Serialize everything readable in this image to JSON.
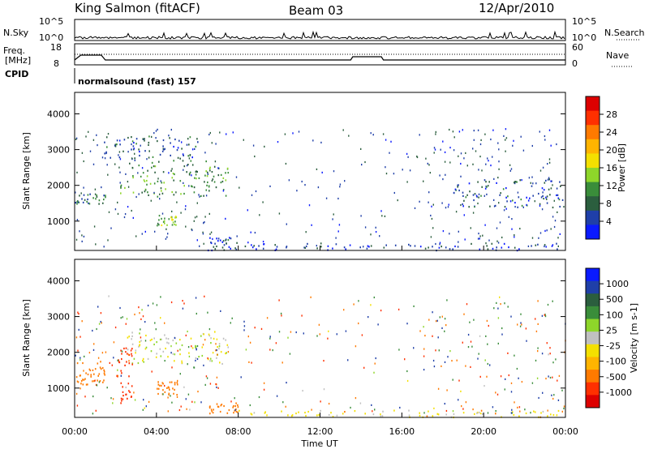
{
  "header": {
    "title": "King Salmon (fitACF)",
    "beam": "Beam 03",
    "date": "12/Apr/2010"
  },
  "strips": {
    "nsky_label": "N.Sky",
    "nsearch_label": "N.Search",
    "noise_ticks": [
      "10^5",
      "10^0"
    ],
    "freq_label": "Freq.",
    "freq_unit": "[MHz]",
    "freq_ticks": [
      "18",
      "8"
    ],
    "nave_label": "Nave",
    "nave_ticks": [
      "60",
      "0"
    ],
    "cpid_label": "CPID",
    "cpid_value": "normalsound (fast) 157"
  },
  "colors": {
    "power": [
      "#0a1aff",
      "#1f3fa8",
      "#2b5e3e",
      "#3a8d3a",
      "#8ed62a",
      "#f4e000",
      "#ffb400",
      "#ff7a00",
      "#ff3000",
      "#dd0000"
    ],
    "velocity": [
      "#0a1aff",
      "#1f3fa8",
      "#2b5e3e",
      "#3a8d3a",
      "#8ed62a",
      "#c0c0c0",
      "#f4e000",
      "#ffb400",
      "#ff7a00",
      "#ff3000",
      "#dd0000"
    ]
  },
  "chart_data": [
    {
      "type": "heatmap",
      "panel": "power",
      "ylabel": "Slant Range [km]",
      "xlabel": "Time UT",
      "xlim": [
        0,
        24
      ],
      "ylim": [
        180,
        4600
      ],
      "x_ticks": [
        "00:00",
        "04:00",
        "08:00",
        "12:00",
        "16:00",
        "20:00",
        "00:00"
      ],
      "y_ticks": [
        1000,
        2000,
        3000,
        4000
      ],
      "colorbar": {
        "label": "Power [dB]",
        "ticks": [
          "28",
          "24",
          "20",
          "16",
          "12",
          "8",
          "4"
        ],
        "range": [
          0,
          30
        ]
      },
      "features": [
        {
          "t": [
            2.2,
            7.5
          ],
          "range_km": [
            1700,
            2700
          ],
          "level_db": 10
        },
        {
          "t": [
            0.0,
            1.5
          ],
          "range_km": [
            1500,
            1800
          ],
          "level_db": 8
        },
        {
          "t": [
            1.4,
            6.0
          ],
          "range_km": [
            2700,
            3400
          ],
          "level_db": 6
        },
        {
          "t": [
            4.0,
            5.0
          ],
          "range_km": [
            900,
            1200
          ],
          "level_db": 12
        },
        {
          "t": [
            6.5,
            8.0
          ],
          "range_km": [
            200,
            600
          ],
          "level_db": 6
        },
        {
          "t": [
            8.0,
            24.0
          ],
          "range_km": [
            200,
            400
          ],
          "level_db": 4
        },
        {
          "t": [
            18.5,
            24.0
          ],
          "range_km": [
            1400,
            2200
          ],
          "level_db": 6
        }
      ]
    },
    {
      "type": "heatmap",
      "panel": "velocity",
      "ylabel": "Slant Range [km]",
      "xlabel": "Time UT",
      "xlim": [
        0,
        24
      ],
      "ylim": [
        180,
        4600
      ],
      "x_ticks": [
        "00:00",
        "04:00",
        "08:00",
        "12:00",
        "16:00",
        "20:00",
        "00:00"
      ],
      "y_ticks": [
        1000,
        2000,
        3000,
        4000
      ],
      "colorbar": {
        "label": "Velocity [m s-1]",
        "ticks": [
          "1000",
          "500",
          "100",
          "25",
          "-25",
          "-100",
          "-500",
          "-1000"
        ]
      },
      "features": [
        {
          "t": [
            2.5,
            7.5
          ],
          "range_km": [
            1700,
            2600
          ],
          "velocity": 0
        },
        {
          "t": [
            0.0,
            1.5
          ],
          "range_km": [
            1100,
            1800
          ],
          "velocity": -300
        },
        {
          "t": [
            2.0,
            2.8
          ],
          "range_km": [
            600,
            2200
          ],
          "velocity": -700
        },
        {
          "t": [
            4.0,
            5.0
          ],
          "range_km": [
            800,
            1200
          ],
          "velocity": -300
        },
        {
          "t": [
            6.5,
            8.0
          ],
          "range_km": [
            300,
            600
          ],
          "velocity": -300
        },
        {
          "t": [
            8.0,
            24.0
          ],
          "range_km": [
            200,
            400
          ],
          "velocity": -50
        }
      ]
    }
  ]
}
